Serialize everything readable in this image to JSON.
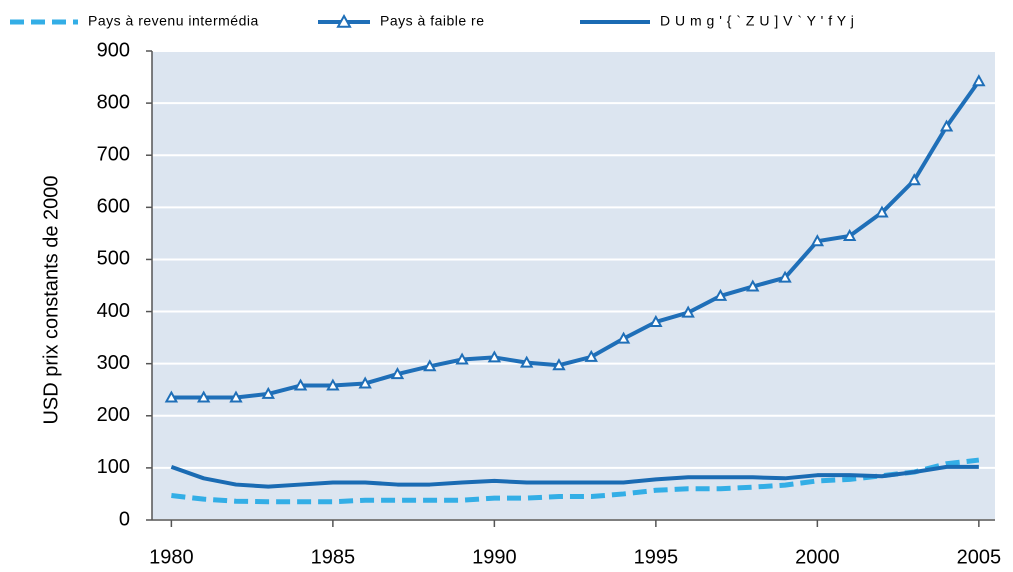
{
  "chart_data": {
    "type": "line",
    "y_label": "USD  prix constants de 2000",
    "x": [
      1980,
      1981,
      1982,
      1983,
      1984,
      1985,
      1986,
      1987,
      1988,
      1989,
      1990,
      1991,
      1992,
      1993,
      1994,
      1995,
      1996,
      1997,
      1998,
      1999,
      2000,
      2001,
      2002,
      2003,
      2004,
      2005
    ],
    "series": [
      {
        "name": "Pays à revenu intermédia",
        "color": "#33aee6",
        "dash": "dashed",
        "marker": "none",
        "values": [
          47,
          40,
          36,
          35,
          35,
          35,
          38,
          38,
          38,
          38,
          42,
          42,
          45,
          45,
          50,
          57,
          60,
          60,
          63,
          67,
          75,
          78,
          85,
          92,
          108,
          115
        ]
      },
      {
        "name": "Pays à faible re",
        "color": "#1f6fb8",
        "dash": "solid",
        "marker": "triangle",
        "values": [
          235,
          235,
          235,
          242,
          258,
          258,
          262,
          280,
          295,
          308,
          312,
          302,
          297,
          313,
          348,
          380,
          398,
          430,
          448,
          465,
          535,
          545,
          590,
          652,
          755,
          842
        ]
      },
      {
        "name": "D U m g ' { ` Z U ] V ` Y ' f Y j",
        "color": "#1a6bb3",
        "dash": "solid",
        "marker": "none",
        "values": [
          102,
          80,
          68,
          64,
          68,
          72,
          72,
          68,
          68,
          72,
          75,
          72,
          72,
          72,
          72,
          78,
          82,
          82,
          82,
          80,
          86,
          86,
          84,
          92,
          102,
          102
        ]
      }
    ],
    "xlim": [
      1979.4,
      2005.5
    ],
    "xticks": [
      1980,
      1985,
      1990,
      1995,
      2000,
      2005
    ],
    "ylim": [
      0,
      900
    ],
    "yticks": [
      0,
      100,
      200,
      300,
      400,
      500,
      600,
      700,
      800,
      900
    ],
    "grid": true,
    "legend": "top",
    "plot_background": "#dce5f0"
  }
}
